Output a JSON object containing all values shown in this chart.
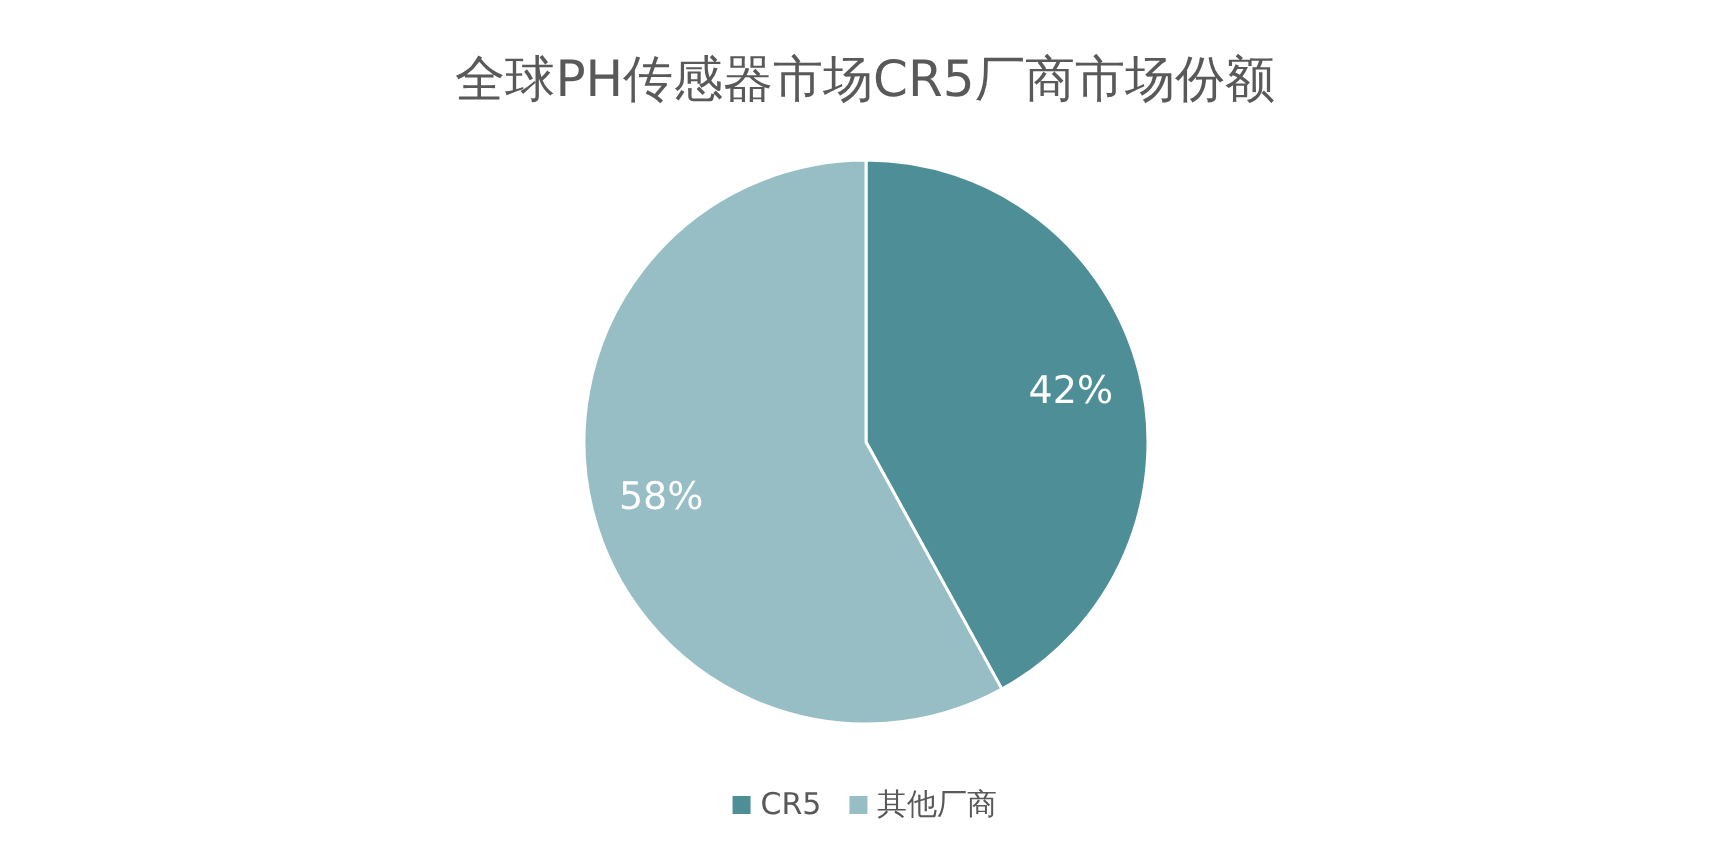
{
  "chart_data": {
    "type": "pie",
    "title": "全球PH传感器市场CR5厂商市场份额",
    "categories": [
      "CR5",
      "其他厂商"
    ],
    "values": [
      42,
      58
    ],
    "colors": [
      "#4e8f97",
      "#98bec5"
    ],
    "value_labels": [
      "42%",
      "58%"
    ],
    "legend": "bottom"
  }
}
